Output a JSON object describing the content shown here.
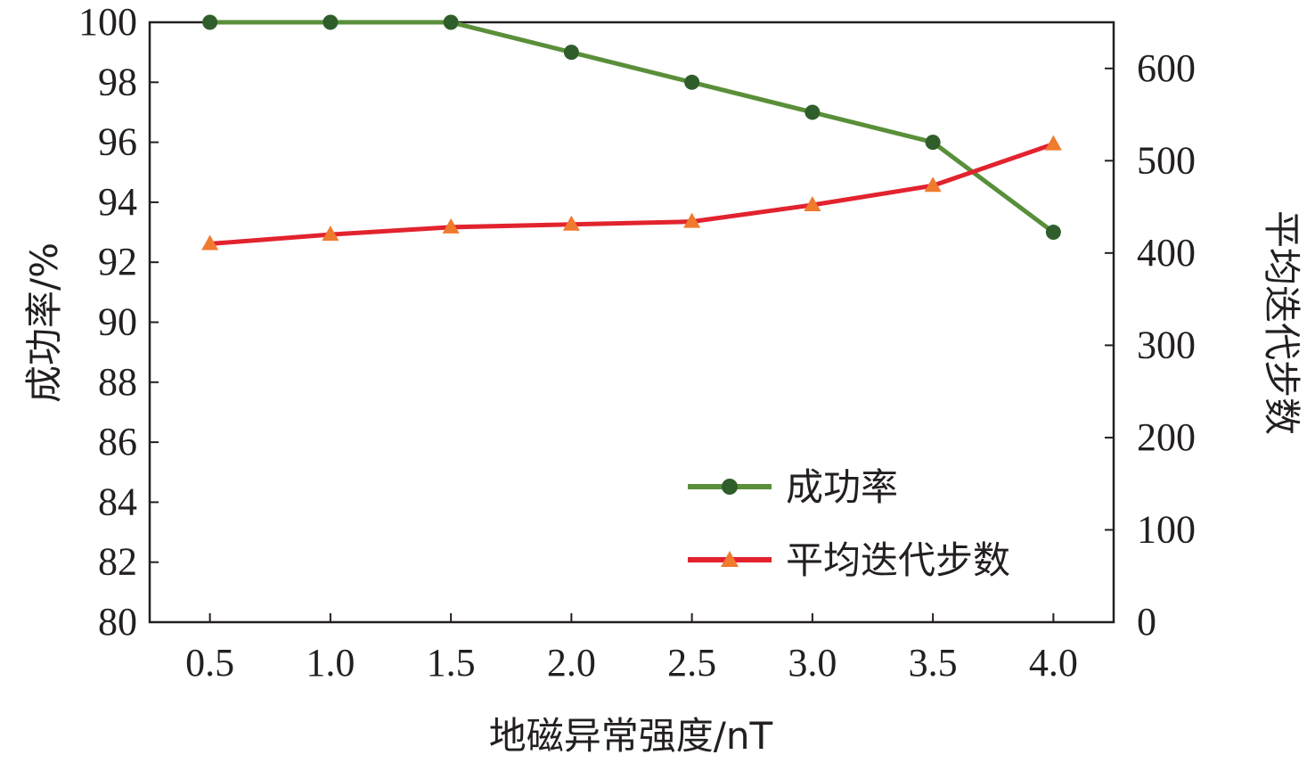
{
  "chart_data": {
    "type": "line",
    "x": [
      0.5,
      1.0,
      1.5,
      2.0,
      2.5,
      3.0,
      3.5,
      4.0
    ],
    "x_tick_labels": [
      "0.5",
      "1.0",
      "1.5",
      "2.0",
      "2.5",
      "3.0",
      "3.5",
      "4.0"
    ],
    "xlabel": "地磁异常强度/nT",
    "ylabel_left": "成功率/%",
    "ylabel_right": "平均迭代步数",
    "ylim_left": [
      80,
      100
    ],
    "ylim_right": [
      0,
      650
    ],
    "y_left_ticks": [
      "80",
      "82",
      "84",
      "86",
      "88",
      "90",
      "92",
      "94",
      "96",
      "98",
      "100"
    ],
    "y_right_ticks": [
      "0",
      "100",
      "200",
      "300",
      "400",
      "500",
      "600"
    ],
    "series": [
      {
        "name": "成功率",
        "axis": "left",
        "color": "#5a8f3a",
        "marker": "circle",
        "marker_color": "#2f5e2a",
        "values": [
          100,
          100,
          100,
          99,
          98,
          97,
          96,
          93
        ]
      },
      {
        "name": "平均迭代步数",
        "axis": "right",
        "color": "#e2232e",
        "marker": "triangle",
        "marker_color": "#f07a2e",
        "values": [
          410,
          420,
          428,
          431,
          434,
          452,
          473,
          518
        ]
      }
    ],
    "legend_position": "bottom-right",
    "grid": false
  }
}
